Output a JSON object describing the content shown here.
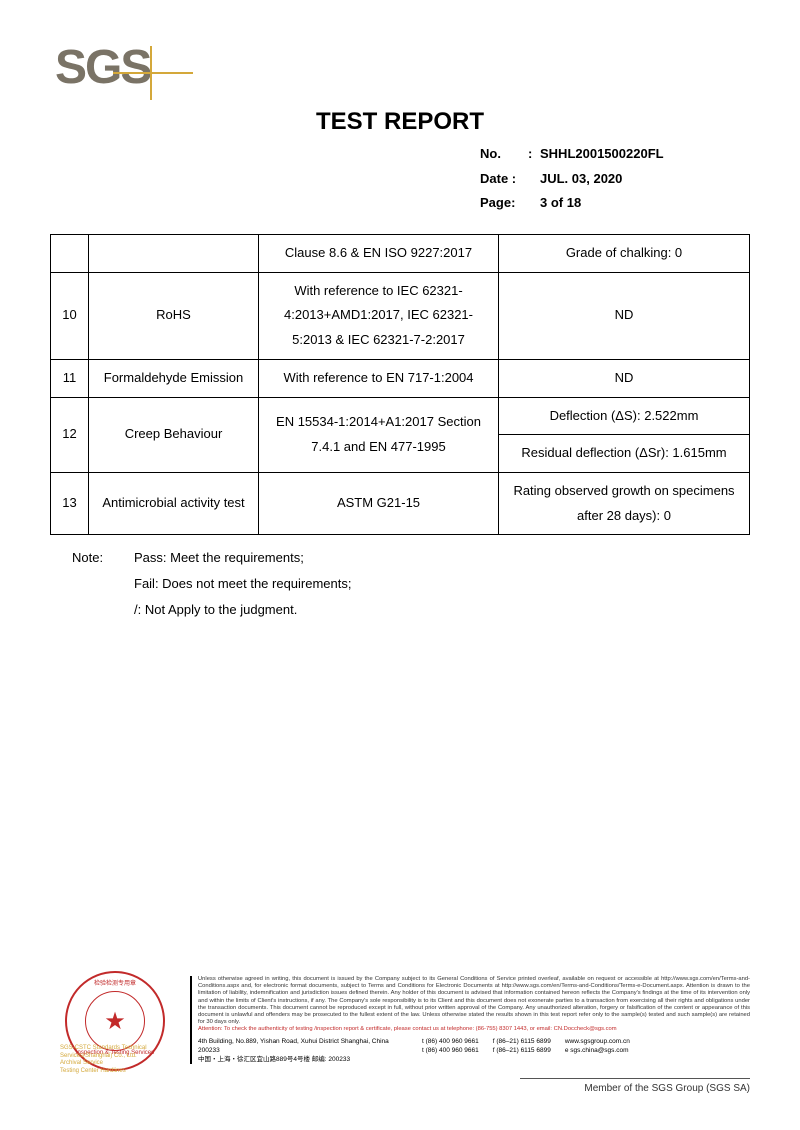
{
  "logo": {
    "text": "SGS"
  },
  "title": "TEST REPORT",
  "meta": {
    "no_label": "No.",
    "no_value": "SHHL2001500220FL",
    "date_label": "Date :",
    "date_value": "JUL. 03, 2020",
    "page_label": "Page:",
    "page_value": "3 of 18"
  },
  "table": {
    "rows": [
      {
        "num": "",
        "name": "",
        "method": "Clause 8.6 & EN ISO 9227:2017",
        "result": "Grade of chalking: 0"
      },
      {
        "num": "10",
        "name": "RoHS",
        "method": "With reference to IEC 62321-4:2013+AMD1:2017, IEC 62321-5:2013 & IEC 62321-7-2:2017",
        "result": "ND"
      },
      {
        "num": "11",
        "name": "Formaldehyde Emission",
        "method": "With reference to EN 717-1:2004",
        "result": "ND"
      },
      {
        "num": "12",
        "name": "Creep Behaviour",
        "method": "EN 15534-1:2014+A1:2017 Section 7.4.1 and EN 477-1995",
        "result_a": "Deflection (ΔS): 2.522mm",
        "result_b": "Residual deflection (ΔSr): 1.615mm"
      },
      {
        "num": "13",
        "name": "Antimicrobial activity test",
        "method": "ASTM G21-15",
        "result": "Rating observed growth on specimens after 28 days): 0"
      }
    ]
  },
  "notes": {
    "label": "Note:",
    "line1": "Pass: Meet the requirements;",
    "line2": "Fail: Does not meet the requirements;",
    "line3": "/: Not Apply to the judgment."
  },
  "stamp": {
    "text_top": "检验检测专用章",
    "text_bot": "Inspection & Testing Services",
    "below1": "SGS-CSTC Standards Technical Services(Shanghai) Co., Ltd.",
    "below2": "Archival Service",
    "below3": "Testing Center Hardlines"
  },
  "disclaimer": {
    "text": "Unless otherwise agreed in writing, this document is issued by the Company subject to its General Conditions of Service printed overleaf, available on request or accessible at http://www.sgs.com/en/Terms-and-Conditions.aspx and, for electronic format documents, subject to Terms and Conditions for Electronic Documents at http://www.sgs.com/en/Terms-and-Conditions/Terms-e-Document.aspx. Attention is drawn to the limitation of liability, indemnification and jurisdiction issues defined therein. Any holder of this document is advised that information contained hereon reflects the Company's findings at the time of its intervention only and within the limits of Client's instructions, if any. The Company's sole responsibility is to its Client and this document does not exonerate parties to a transaction from exercising all their rights and obligations under the transaction documents. This document cannot be reproduced except in full, without prior written approval of the Company. Any unauthorized alteration, forgery or falsification of the content or appearance of this document is unlawful and offenders may be prosecuted to the fullest extent of the law. Unless otherwise stated the results shown in this test report refer only to the sample(s) tested and such sample(s) are retained for 30 days only.",
    "attention": "Attention: To check the authenticity of testing /inspection report & certificate, please contact us at telephone: (86-755) 8307 1443, or email: CN.Doccheck@sgs.com",
    "addr1_en": "4th Building, No.889, Yishan Road, Xuhui District Shanghai, China  200233",
    "addr1_cn": "中国・上海・徐汇区宜山路889号4号楼   邮编: 200233",
    "tel": "t  (86) 400 960 9661",
    "fax": "f  (86–21) 6115 6899",
    "web1": "www.sgsgroup.com.cn",
    "email": "e  sgs.china@sgs.com"
  },
  "member": "Member of the SGS Group (SGS SA)"
}
